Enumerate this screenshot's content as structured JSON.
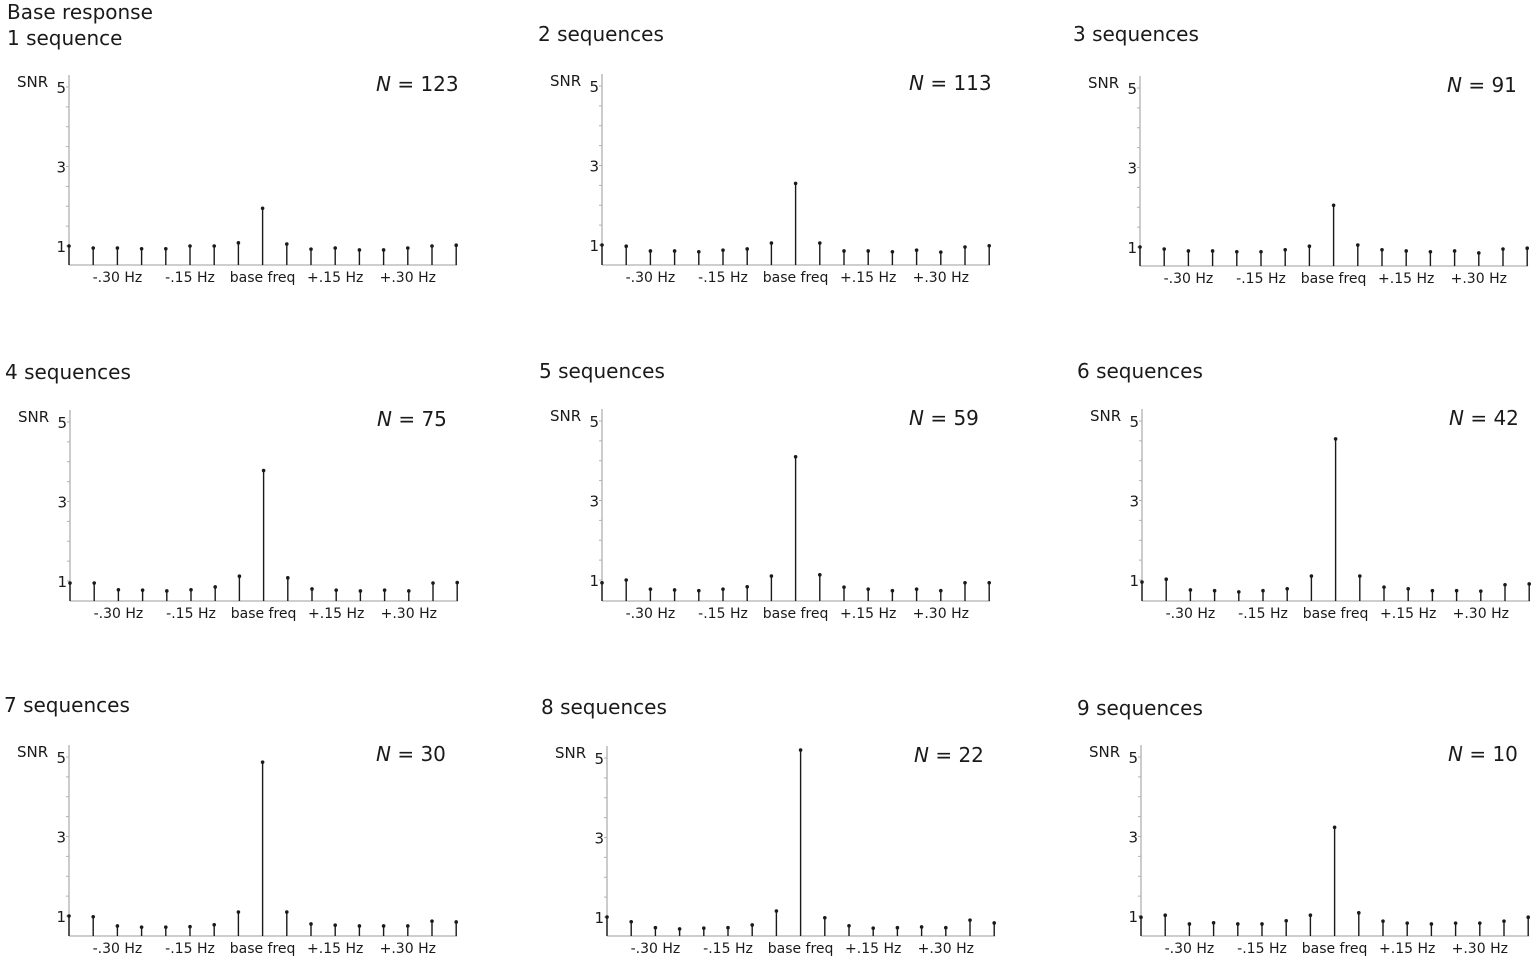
{
  "figure": {
    "title": "Base response"
  },
  "axes_common": {
    "ylabel": "SNR",
    "yticks": [
      1,
      3,
      5
    ],
    "xtick_labels": [
      "-.30 Hz",
      "-.15 Hz",
      "base freq",
      "+.15 Hz",
      "+.30 Hz"
    ],
    "n_prefix": "N",
    "n_eq": "="
  },
  "colors": {
    "stem": "#1a1a1a",
    "axis": "#b0b0b0",
    "text": "#1a1a1a"
  },
  "panels": [
    {
      "title": "1 sequence",
      "n": "123"
    },
    {
      "title": "2 sequences",
      "n": "113"
    },
    {
      "title": "3 sequences",
      "n": "91"
    },
    {
      "title": "4 sequences",
      "n": "75"
    },
    {
      "title": "5 sequences",
      "n": "59"
    },
    {
      "title": "6 sequences",
      "n": "42"
    },
    {
      "title": "7 sequences",
      "n": "30"
    },
    {
      "title": "8 sequences",
      "n": "22"
    },
    {
      "title": "9 sequences",
      "n": "10"
    }
  ],
  "chart_data": [
    {
      "type": "stem",
      "title": "1 sequence",
      "annotation": "N = 123",
      "ylabel": "SNR",
      "ylim": [
        0.5,
        5.3
      ],
      "yticks": [
        1,
        3,
        5
      ],
      "x": [
        -8,
        -7,
        -6,
        -5,
        -4,
        -3,
        -2,
        -1,
        0,
        1,
        2,
        3,
        4,
        5,
        6,
        7,
        8
      ],
      "xtick_labels": {
        "-6": "-.30 Hz",
        "-3": "-.15 Hz",
        "0": "base freq",
        "3": "+.15 Hz",
        "6": "+.30 Hz"
      },
      "values": [
        1.0,
        0.95,
        0.95,
        0.93,
        0.93,
        1.0,
        1.0,
        1.08,
        1.95,
        1.05,
        0.92,
        0.95,
        0.9,
        0.9,
        0.95,
        1.0,
        1.02
      ]
    },
    {
      "type": "stem",
      "title": "2 sequences",
      "annotation": "N = 113",
      "ylabel": "SNR",
      "ylim": [
        0.5,
        5.3
      ],
      "yticks": [
        1,
        3,
        5
      ],
      "x": [
        -8,
        -7,
        -6,
        -5,
        -4,
        -3,
        -2,
        -1,
        0,
        1,
        2,
        3,
        4,
        5,
        6,
        7,
        8
      ],
      "xtick_labels": {
        "-6": "-.30 Hz",
        "-3": "-.15 Hz",
        "0": "base freq",
        "3": "+.15 Hz",
        "6": "+.30 Hz"
      },
      "values": [
        1.0,
        0.97,
        0.85,
        0.85,
        0.83,
        0.87,
        0.9,
        1.05,
        2.55,
        1.05,
        0.85,
        0.85,
        0.83,
        0.87,
        0.82,
        0.95,
        0.98
      ]
    },
    {
      "type": "stem",
      "title": "3 sequences",
      "annotation": "N = 91",
      "ylabel": "SNR",
      "ylim": [
        0.5,
        5.3
      ],
      "yticks": [
        1,
        3,
        5
      ],
      "x": [
        -8,
        -7,
        -6,
        -5,
        -4,
        -3,
        -2,
        -1,
        0,
        1,
        2,
        3,
        4,
        5,
        6,
        7,
        8
      ],
      "xtick_labels": {
        "-6": "-.30 Hz",
        "-3": "-.15 Hz",
        "0": "base freq",
        "3": "+.15 Hz",
        "6": "+.30 Hz"
      },
      "values": [
        1.0,
        0.95,
        0.9,
        0.9,
        0.88,
        0.88,
        0.93,
        1.02,
        2.05,
        1.05,
        0.93,
        0.9,
        0.88,
        0.9,
        0.85,
        0.95,
        0.97
      ]
    },
    {
      "type": "stem",
      "title": "4 sequences",
      "annotation": "N = 75",
      "ylabel": "SNR",
      "ylim": [
        0.5,
        5.3
      ],
      "yticks": [
        1,
        3,
        5
      ],
      "x": [
        -8,
        -7,
        -6,
        -5,
        -4,
        -3,
        -2,
        -1,
        0,
        1,
        2,
        3,
        4,
        5,
        6,
        7,
        8
      ],
      "xtick_labels": {
        "-6": "-.30 Hz",
        "-3": "-.15 Hz",
        "0": "base freq",
        "3": "+.15 Hz",
        "6": "+.30 Hz"
      },
      "values": [
        0.95,
        0.95,
        0.78,
        0.77,
        0.75,
        0.78,
        0.85,
        1.12,
        3.78,
        1.08,
        0.8,
        0.77,
        0.75,
        0.77,
        0.75,
        0.95,
        0.96
      ]
    },
    {
      "type": "stem",
      "title": "5 sequences",
      "annotation": "N = 59",
      "ylabel": "SNR",
      "ylim": [
        0.5,
        5.3
      ],
      "yticks": [
        1,
        3,
        5
      ],
      "x": [
        -8,
        -7,
        -6,
        -5,
        -4,
        -3,
        -2,
        -1,
        0,
        1,
        2,
        3,
        4,
        5,
        6,
        7,
        8
      ],
      "xtick_labels": {
        "-6": "-.30 Hz",
        "-3": "-.15 Hz",
        "0": "base freq",
        "3": "+.15 Hz",
        "6": "+.30 Hz"
      },
      "values": [
        0.93,
        1.0,
        0.77,
        0.75,
        0.73,
        0.77,
        0.83,
        1.1,
        4.1,
        1.13,
        0.82,
        0.77,
        0.73,
        0.77,
        0.73,
        0.93,
        0.93
      ]
    },
    {
      "type": "stem",
      "title": "6 sequences",
      "annotation": "N = 42",
      "ylabel": "SNR",
      "ylim": [
        0.5,
        5.3
      ],
      "yticks": [
        1,
        3,
        5
      ],
      "x": [
        -8,
        -7,
        -6,
        -5,
        -4,
        -3,
        -2,
        -1,
        0,
        1,
        2,
        3,
        4,
        5,
        6,
        7,
        8
      ],
      "xtick_labels": {
        "-6": "-.30 Hz",
        "-3": "-.15 Hz",
        "0": "base freq",
        "3": "+.15 Hz",
        "6": "+.30 Hz"
      },
      "values": [
        0.95,
        1.02,
        0.75,
        0.73,
        0.7,
        0.73,
        0.78,
        1.1,
        4.55,
        1.1,
        0.82,
        0.78,
        0.73,
        0.73,
        0.72,
        0.88,
        0.9
      ]
    },
    {
      "type": "stem",
      "title": "7 sequences",
      "annotation": "N = 30",
      "ylabel": "SNR",
      "ylim": [
        0.5,
        5.3
      ],
      "yticks": [
        1,
        3,
        5
      ],
      "x": [
        -8,
        -7,
        -6,
        -5,
        -4,
        -3,
        -2,
        -1,
        0,
        1,
        2,
        3,
        4,
        5,
        6,
        7,
        8
      ],
      "xtick_labels": {
        "-6": "-.30 Hz",
        "-3": "-.15 Hz",
        "0": "base freq",
        "3": "+.15 Hz",
        "6": "+.30 Hz"
      },
      "values": [
        1.0,
        0.98,
        0.75,
        0.72,
        0.72,
        0.73,
        0.78,
        1.1,
        4.87,
        1.1,
        0.8,
        0.77,
        0.75,
        0.75,
        0.75,
        0.87,
        0.85
      ]
    },
    {
      "type": "stem",
      "title": "8 sequences",
      "annotation": "N = 22",
      "ylabel": "SNR",
      "ylim": [
        0.5,
        5.3
      ],
      "yticks": [
        1,
        3,
        5
      ],
      "x": [
        -8,
        -7,
        -6,
        -5,
        -4,
        -3,
        -2,
        -1,
        0,
        1,
        2,
        3,
        4,
        5,
        6,
        7,
        8
      ],
      "xtick_labels": {
        "-6": "-.30 Hz",
        "-3": "-.15 Hz",
        "0": "base freq",
        "3": "+.15 Hz",
        "6": "+.30 Hz"
      },
      "values": [
        1.0,
        0.88,
        0.73,
        0.7,
        0.72,
        0.73,
        0.8,
        1.15,
        5.2,
        0.98,
        0.78,
        0.72,
        0.73,
        0.75,
        0.73,
        0.92,
        0.85
      ]
    },
    {
      "type": "stem",
      "title": "9 sequences",
      "annotation": "N = 10",
      "ylabel": "SNR",
      "ylim": [
        0.5,
        5.3
      ],
      "yticks": [
        1,
        3,
        5
      ],
      "x": [
        -8,
        -7,
        -6,
        -5,
        -4,
        -3,
        -2,
        -1,
        0,
        1,
        2,
        3,
        4,
        5,
        6,
        7,
        8
      ],
      "xtick_labels": {
        "-6": "-.30 Hz",
        "-3": "-.15 Hz",
        "0": "base freq",
        "3": "+.15 Hz",
        "6": "+.30 Hz"
      },
      "values": [
        0.97,
        1.02,
        0.8,
        0.83,
        0.8,
        0.8,
        0.88,
        1.02,
        3.23,
        1.08,
        0.87,
        0.82,
        0.8,
        0.82,
        0.82,
        0.87,
        0.97
      ]
    }
  ]
}
